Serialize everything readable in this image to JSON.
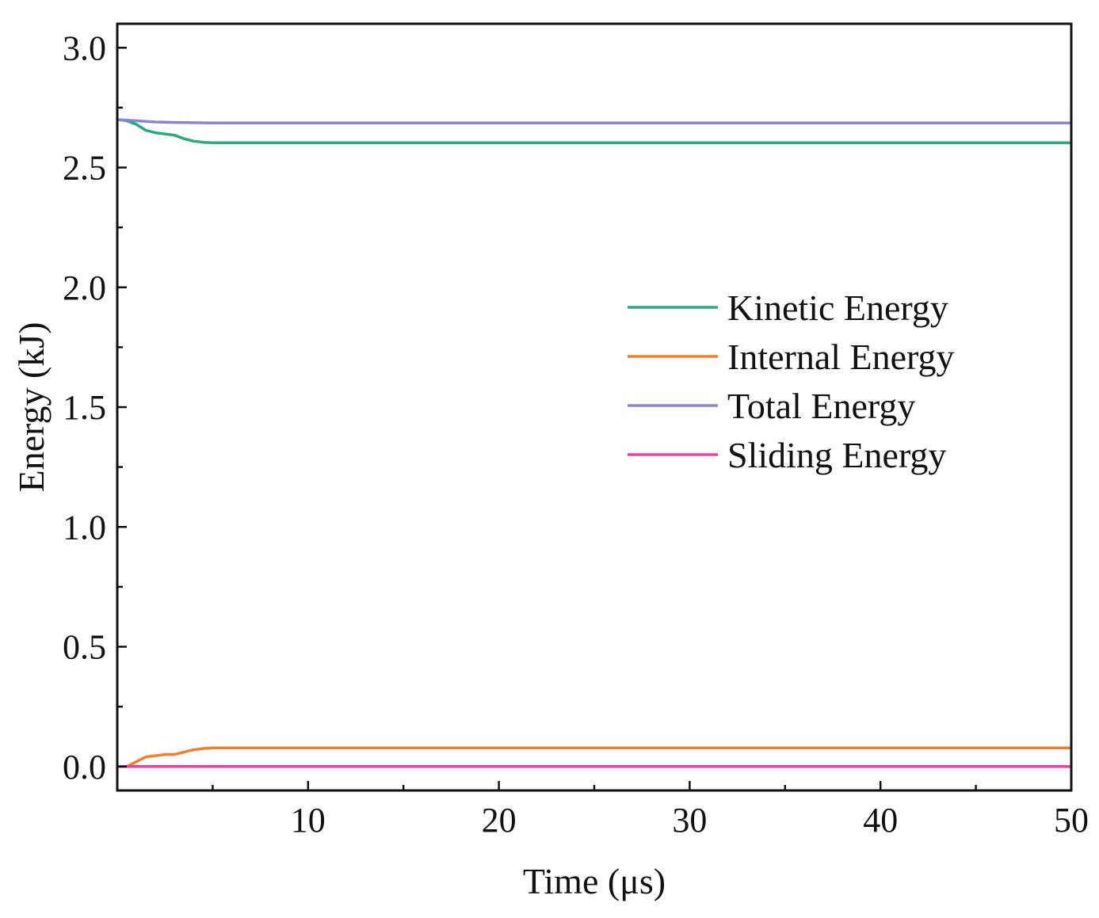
{
  "chart_data": {
    "type": "line",
    "title": "",
    "xlabel": "Time (μs)",
    "ylabel": "Energy (kJ)",
    "xlim": [
      0,
      50
    ],
    "ylim": [
      -0.1,
      3.1
    ],
    "xticks": [
      10,
      20,
      30,
      40,
      50
    ],
    "xtick_labels": [
      "10",
      "20",
      "30",
      "40",
      "50"
    ],
    "yticks": [
      0.0,
      0.5,
      1.0,
      1.5,
      2.0,
      2.5,
      3.0
    ],
    "ytick_labels": [
      "0.0",
      "0.5",
      "1.0",
      "1.5",
      "2.0",
      "2.5",
      "3.0"
    ],
    "grid": false,
    "legend_position": "center-right",
    "series": [
      {
        "name": "Kinetic Energy",
        "color": "#2aa880",
        "x": [
          0,
          0.5,
          1,
          1.5,
          2,
          2.5,
          3,
          3.5,
          4,
          4.5,
          5,
          10,
          20,
          30,
          40,
          50
        ],
        "y": [
          2.7,
          2.695,
          2.68,
          2.655,
          2.645,
          2.64,
          2.635,
          2.62,
          2.61,
          2.605,
          2.603,
          2.603,
          2.603,
          2.603,
          2.603,
          2.603
        ]
      },
      {
        "name": "Internal Energy",
        "color": "#f07f2d",
        "x": [
          0,
          0.5,
          1,
          1.5,
          2,
          2.5,
          3,
          3.5,
          4,
          4.5,
          5,
          10,
          20,
          30,
          40,
          50
        ],
        "y": [
          0.0,
          0.0,
          0.02,
          0.04,
          0.045,
          0.05,
          0.05,
          0.06,
          0.07,
          0.075,
          0.078,
          0.078,
          0.078,
          0.078,
          0.078,
          0.078
        ]
      },
      {
        "name": "Total Energy",
        "color": "#8b84d0",
        "x": [
          0,
          1,
          2,
          3,
          4,
          5,
          10,
          20,
          30,
          40,
          50
        ],
        "y": [
          2.7,
          2.695,
          2.69,
          2.688,
          2.687,
          2.686,
          2.686,
          2.686,
          2.686,
          2.686,
          2.686
        ]
      },
      {
        "name": "Sliding Energy",
        "color": "#ee3fa0",
        "x": [
          0,
          10,
          20,
          30,
          40,
          50
        ],
        "y": [
          0.0,
          0.0,
          0.0,
          0.0,
          0.0,
          0.0
        ]
      }
    ]
  }
}
